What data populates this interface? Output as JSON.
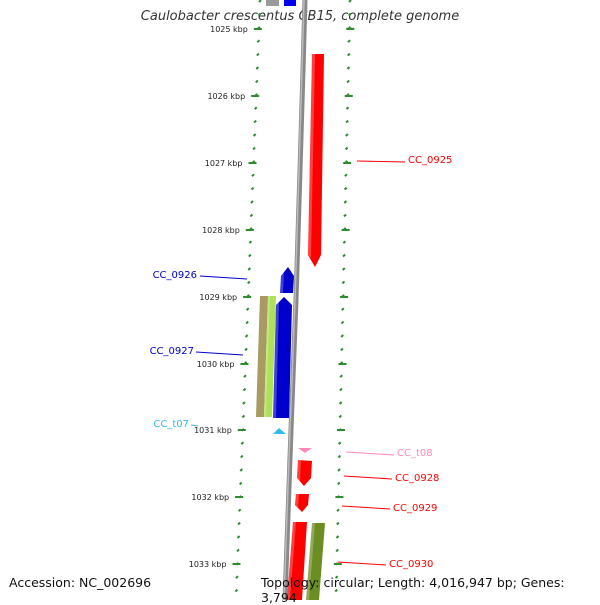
{
  "title": "Caulobacter crescentus CB15, complete genome",
  "footer": {
    "accession": "Accession: NC_002696",
    "summary": "Topology: circular; Length: 4,016,947 bp; Genes: 3,794"
  },
  "ruler": {
    "labels": [
      "1025 kbp",
      "1026 kbp",
      "1027 kbp",
      "1028 kbp",
      "1029 kbp",
      "1030 kbp",
      "1031 kbp",
      "1032 kbp",
      "1033 kbp"
    ],
    "tick_color": "#2e8b2e"
  },
  "genes": [
    {
      "name": "CC_0925",
      "color": "#ff0000",
      "side": "right"
    },
    {
      "name": "CC_0926",
      "color": "#0000cc",
      "side": "left"
    },
    {
      "name": "CC_0927",
      "color": "#0000cc",
      "side": "left"
    },
    {
      "name": "CC_t07",
      "color": "#33bbee",
      "side": "left"
    },
    {
      "name": "CC_t08",
      "color": "#ff88bb",
      "side": "right"
    },
    {
      "name": "CC_0928",
      "color": "#ff0000",
      "side": "right"
    },
    {
      "name": "CC_0929",
      "color": "#ff0000",
      "side": "right"
    },
    {
      "name": "CC_0930",
      "color": "#ff0000",
      "side": "right"
    }
  ]
}
